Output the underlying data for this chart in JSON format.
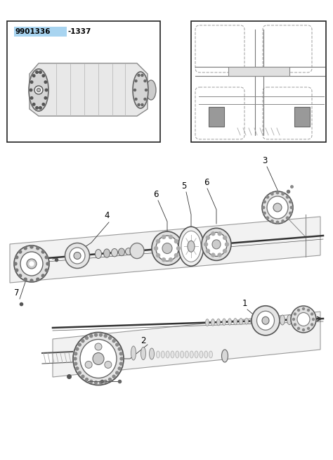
{
  "bg_color": "#ffffff",
  "border_color": "#222222",
  "part_number_highlighted": "9901336",
  "part_number_rest": "-1337",
  "highlight_color": "#a8d4f0",
  "line_color": "#444444",
  "fig_width": 4.74,
  "fig_height": 6.54,
  "dpi": 100,
  "panel_color": "#f8f8f8",
  "panel_edge": "#888888",
  "shaft_color": "#333333",
  "part_gray_light": "#dedede",
  "part_gray_mid": "#bbbbbb",
  "part_gray_dark": "#888888",
  "part_border": "#555555"
}
